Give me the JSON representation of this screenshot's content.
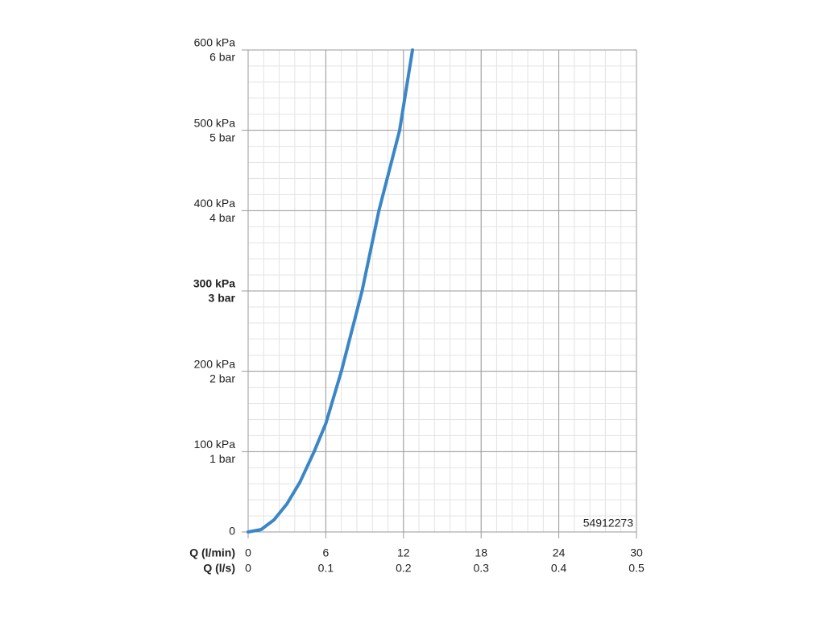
{
  "chart_data": {
    "type": "line",
    "xlabel": "Q (l/min)",
    "x2label": "Q (l/s)",
    "xlim": [
      0,
      30
    ],
    "xticks": [
      0,
      6,
      12,
      18,
      24,
      30
    ],
    "x2ticks": [
      0,
      0.1,
      0.2,
      0.3,
      0.4,
      0.5
    ],
    "ylim": [
      0,
      600
    ],
    "yticks": [
      0,
      {
        "value": 100,
        "label": "100 kPa"
      },
      {
        "value": 200,
        "label": "200 kPa"
      },
      {
        "value": 300,
        "label": "300 kPa"
      },
      {
        "value": 400,
        "label": "400 kPa"
      },
      {
        "value": 500,
        "label": "500 kPa"
      },
      {
        "value": 600,
        "label": "600 kPa"
      }
    ],
    "ytick_sublabels": [
      null,
      "1 bar",
      "2 bar",
      "3 bar",
      "4 bar",
      "5 bar",
      "6 bar"
    ],
    "highlight_ytick": 300,
    "grid": true,
    "annotation": "54912273",
    "series": [
      {
        "color": "#3a86c6",
        "x": [
          0,
          1,
          2,
          3,
          4,
          5.1,
          6,
          7.2,
          8.8,
          10.1,
          11.7,
          12.7
        ],
        "values": [
          0,
          3,
          15,
          35,
          62,
          100,
          135,
          200,
          300,
          400,
          500,
          600
        ]
      }
    ]
  }
}
